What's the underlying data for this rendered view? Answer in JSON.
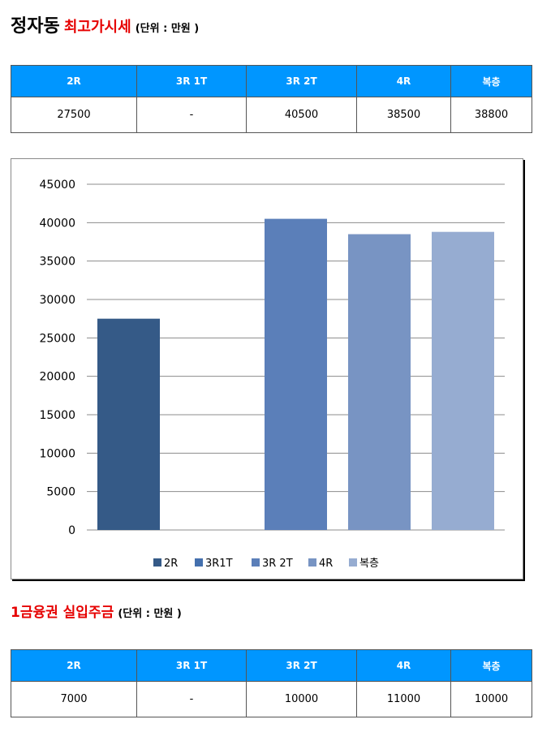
{
  "section1": {
    "title_main": "정자동",
    "title_red": "최고가시세",
    "unit": "(단위 : 만원 )",
    "headers": [
      "2R",
      "3R 1T",
      "3R 2T",
      "4R",
      "복층"
    ],
    "values": [
      "27500",
      "-",
      "40500",
      "38500",
      "38800"
    ]
  },
  "section2": {
    "title_red": "1금융권 실입주금",
    "unit": "(단위 : 만원 )",
    "headers": [
      "2R",
      "3R 1T",
      "3R 2T",
      "4R",
      "복층"
    ],
    "values": [
      "7000",
      "-",
      "10000",
      "11000",
      "10000"
    ]
  },
  "chart_data": {
    "type": "bar",
    "categories": [
      "2R",
      "3R1T",
      "3R 2T",
      "4R",
      "복층"
    ],
    "values": [
      27500,
      0,
      40500,
      38500,
      38800
    ],
    "colors": [
      "#355a87",
      "#4470ae",
      "#5b7fb9",
      "#7894c3",
      "#96acd1"
    ],
    "ylim": [
      0,
      45000
    ],
    "yticks": [
      0,
      5000,
      10000,
      15000,
      20000,
      25000,
      30000,
      35000,
      40000,
      45000
    ],
    "legend_labels": [
      "2R",
      "3R1T",
      "3R 2T",
      "4R",
      "복층"
    ],
    "legend_position": "bottom",
    "grid": true
  }
}
